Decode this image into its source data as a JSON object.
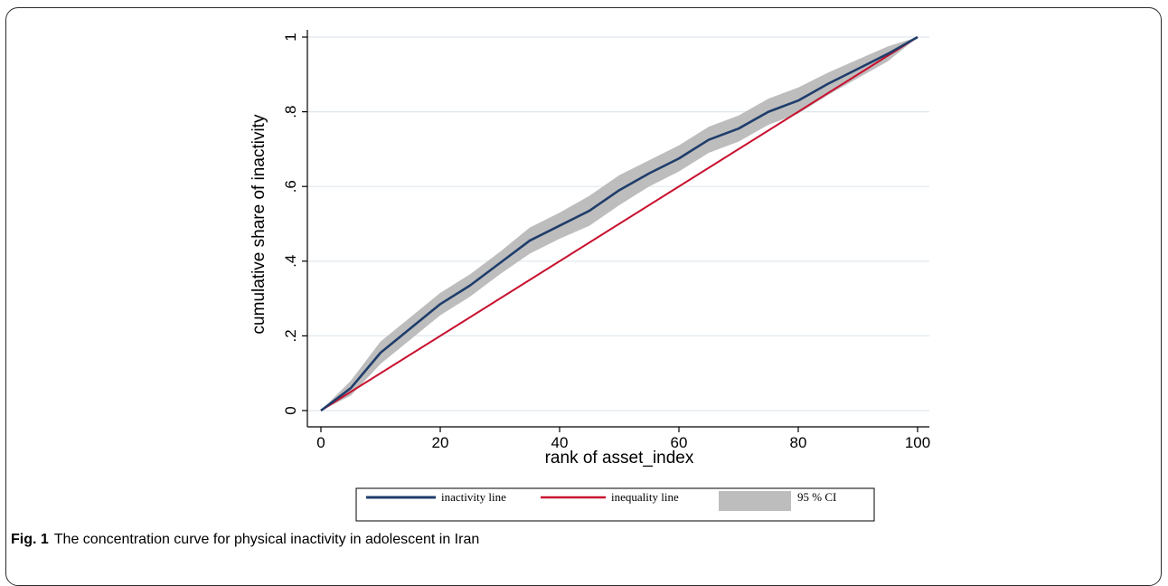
{
  "chart_data": {
    "type": "line",
    "title": "",
    "xlabel": "rank of asset_index",
    "ylabel": "cumulative share of inactivity",
    "xlim": [
      0,
      100
    ],
    "ylim": [
      0,
      1
    ],
    "x_ticks": [
      0,
      20,
      40,
      60,
      80,
      100
    ],
    "x_tick_labels": [
      "0",
      "20",
      "40",
      "60",
      "80",
      "100"
    ],
    "y_ticks": [
      0,
      0.2,
      0.4,
      0.6,
      0.8,
      1
    ],
    "y_tick_labels": [
      "0",
      ".2",
      ".4",
      ".6",
      ".8",
      "1"
    ],
    "grid": true,
    "legend_position": "bottom",
    "series": [
      {
        "name": "inactivity line",
        "color": "#1f3d6b",
        "x": [
          0,
          5,
          10,
          15,
          20,
          25,
          30,
          35,
          40,
          45,
          50,
          55,
          60,
          65,
          70,
          75,
          80,
          85,
          90,
          95,
          100
        ],
        "y": [
          0,
          0.06,
          0.155,
          0.22,
          0.285,
          0.335,
          0.395,
          0.455,
          0.495,
          0.535,
          0.59,
          0.635,
          0.675,
          0.725,
          0.755,
          0.8,
          0.83,
          0.875,
          0.915,
          0.955,
          1.0
        ]
      },
      {
        "name": "inequality line",
        "color": "#c8102e",
        "x": [
          0,
          100
        ],
        "y": [
          0,
          1
        ]
      }
    ],
    "confidence_band": {
      "name": "95 % CI",
      "color": "#bdbdbd",
      "x": [
        0,
        5,
        10,
        15,
        20,
        25,
        30,
        35,
        40,
        45,
        50,
        55,
        60,
        65,
        70,
        75,
        80,
        85,
        90,
        95,
        100
      ],
      "lower": [
        0,
        0.04,
        0.125,
        0.19,
        0.255,
        0.305,
        0.365,
        0.42,
        0.46,
        0.495,
        0.55,
        0.6,
        0.64,
        0.69,
        0.72,
        0.765,
        0.795,
        0.845,
        0.89,
        0.935,
        1.0
      ],
      "upper": [
        0,
        0.08,
        0.185,
        0.25,
        0.315,
        0.365,
        0.425,
        0.49,
        0.53,
        0.575,
        0.63,
        0.67,
        0.71,
        0.76,
        0.79,
        0.835,
        0.865,
        0.905,
        0.94,
        0.975,
        1.0
      ]
    }
  },
  "legend": {
    "items": [
      {
        "label": "inactivity line",
        "kind": "line",
        "color": "#1f3d6b"
      },
      {
        "label": "inequality line",
        "kind": "line",
        "color": "#c8102e"
      },
      {
        "label": "95 % CI",
        "kind": "band",
        "color": "#bdbdbd"
      }
    ]
  },
  "caption": {
    "prefix": "Fig. 1",
    "text": "The concentration curve for physical inactivity in adolescent in Iran"
  }
}
